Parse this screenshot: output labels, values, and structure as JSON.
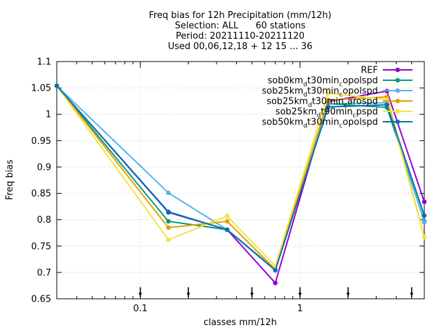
{
  "chart_data": {
    "type": "line",
    "title_lines": [
      "Freq bias  for 12h Precipitation (mm/12h)",
      "Selection: ALL      60 stations",
      "Period: 20211110-20211120",
      "Used 00,06,12,18 + 12 15 ... 36"
    ],
    "xlabel": "classes mm/12h",
    "ylabel": "Freq bias",
    "x_scale": "log",
    "xlim": [
      0.03,
      6.0
    ],
    "ylim": [
      0.65,
      1.1
    ],
    "grid": true,
    "legend_position": "top-right",
    "x_ticks": [
      {
        "value": 0.1,
        "label": "0.1"
      },
      {
        "value": 1,
        "label": "1"
      }
    ],
    "y_ticks": [
      {
        "value": 0.65,
        "label": "0.65"
      },
      {
        "value": 0.7,
        "label": "0.7"
      },
      {
        "value": 0.75,
        "label": "0.75"
      },
      {
        "value": 0.8,
        "label": "0.8"
      },
      {
        "value": 0.85,
        "label": "0.85"
      },
      {
        "value": 0.9,
        "label": "0.9"
      },
      {
        "value": 0.95,
        "label": "0.95"
      },
      {
        "value": 1,
        "label": "1"
      },
      {
        "value": 1.05,
        "label": "1.05"
      },
      {
        "value": 1.1,
        "label": "1.1"
      }
    ],
    "class_markers": [
      0.1,
      0.2,
      0.5,
      1,
      2,
      5
    ],
    "x": [
      0.03,
      0.15,
      0.35,
      0.7,
      1.5,
      3.5,
      6.0
    ],
    "series": [
      {
        "name": "REF",
        "color": "#9400d3",
        "values": [
          1.054,
          0.814,
          0.781,
          0.68,
          1.024,
          1.044,
          0.834
        ]
      },
      {
        "name": "sob0km_dt30min_copolspd",
        "color": "#009e73",
        "values": [
          1.054,
          0.797,
          0.781,
          0.706,
          1.02,
          1.013,
          0.797
        ]
      },
      {
        "name": "sob25km_dt30min_copolspd",
        "color": "#56b4e9",
        "values": [
          1.054,
          0.851,
          0.781,
          0.706,
          1.02,
          1.022,
          0.795
        ]
      },
      {
        "name": "sob25km_dt30min_carospd",
        "color": "#e69f00",
        "values": [
          1.054,
          0.785,
          0.797,
          0.706,
          1.027,
          1.033,
          0.767
        ]
      },
      {
        "name": "sob25km_dt90min_cpspd",
        "color": "#f0e442",
        "values": [
          1.054,
          0.762,
          0.807,
          0.712,
          1.04,
          1.028,
          0.767
        ]
      },
      {
        "name": "sob50km_dt30min_copolspd",
        "color": "#0072b2",
        "values": [
          1.054,
          0.815,
          0.781,
          0.704,
          1.014,
          1.018,
          0.808
        ]
      }
    ]
  }
}
